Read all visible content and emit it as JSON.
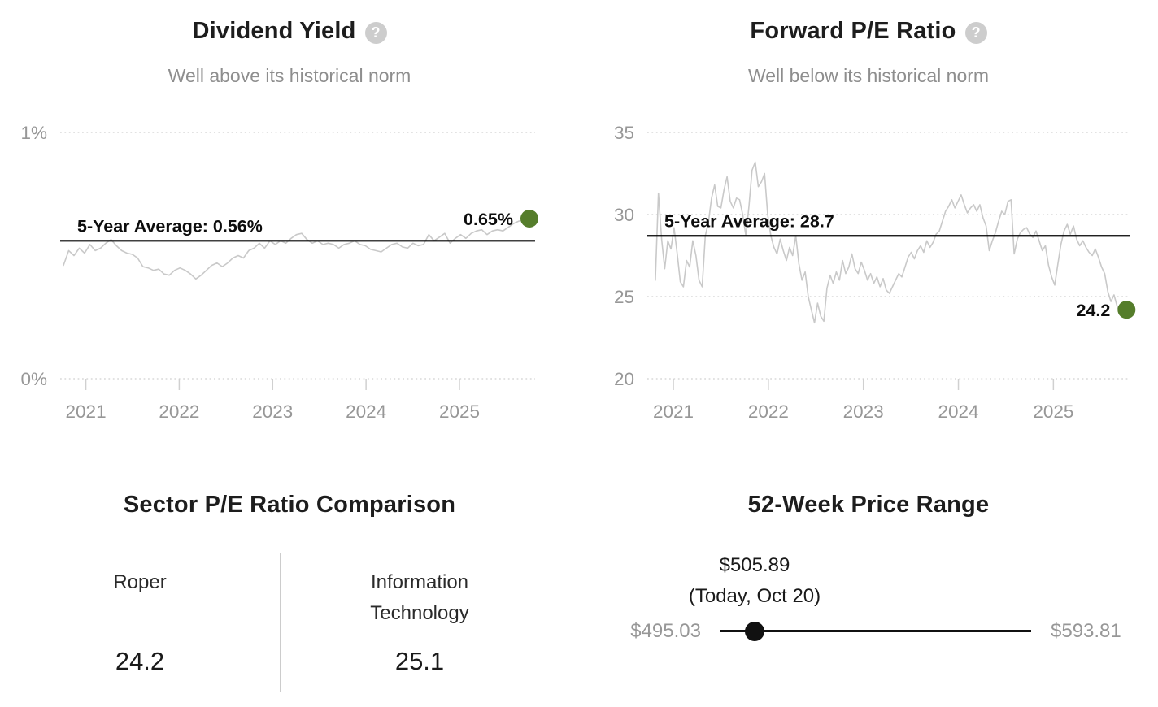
{
  "icons": {
    "help_glyph": "?"
  },
  "colors": {
    "accent_green": "#557d2b",
    "series_gray": "#c9c9c9",
    "grid_gray": "#d9d9d9",
    "text_dark": "#1a1a1a",
    "text_gray": "#979797"
  },
  "chart_data": [
    {
      "type": "line",
      "title": "Dividend Yield",
      "subtitle": "Well above its historical norm",
      "ylim": [
        0,
        1
      ],
      "yticks": [
        1,
        0
      ],
      "ytick_labels": [
        "1%",
        "0%"
      ],
      "xticks": [
        2021,
        2022,
        2023,
        2024,
        2025
      ],
      "xtick_labels": [
        "2021",
        "2022",
        "2023",
        "2024",
        "2025"
      ],
      "x_range_years": [
        2020.76,
        2025.81
      ],
      "grid": "dotted-horizontal",
      "average": {
        "label": "5-Year Average: 0.56%",
        "value": 0.56
      },
      "current": {
        "label": "0.65%",
        "value": 0.65
      },
      "series": [
        {
          "name": "Dividend Yield (5-year history)",
          "xspan": [
            0.0,
            0.988
          ],
          "values": [
            0.46,
            0.52,
            0.5,
            0.53,
            0.51,
            0.545,
            0.52,
            0.53,
            0.55,
            0.565,
            0.54,
            0.52,
            0.51,
            0.505,
            0.49,
            0.455,
            0.45,
            0.44,
            0.445,
            0.425,
            0.42,
            0.44,
            0.45,
            0.44,
            0.425,
            0.405,
            0.42,
            0.44,
            0.46,
            0.47,
            0.455,
            0.47,
            0.49,
            0.5,
            0.49,
            0.52,
            0.53,
            0.55,
            0.53,
            0.56,
            0.545,
            0.56,
            0.55,
            0.57,
            0.585,
            0.59,
            0.565,
            0.55,
            0.56,
            0.545,
            0.55,
            0.545,
            0.53,
            0.545,
            0.55,
            0.56,
            0.545,
            0.54,
            0.525,
            0.52,
            0.515,
            0.53,
            0.545,
            0.55,
            0.535,
            0.53,
            0.55,
            0.54,
            0.545,
            0.585,
            0.56,
            0.575,
            0.59,
            0.55,
            0.57,
            0.585,
            0.57,
            0.59,
            0.6,
            0.605,
            0.585,
            0.6,
            0.605,
            0.6,
            0.615,
            0.63,
            0.64,
            0.645,
            0.65
          ]
        }
      ]
    },
    {
      "type": "line",
      "title": "Forward P/E Ratio",
      "subtitle": "Well below its historical norm",
      "ylim": [
        20,
        35
      ],
      "yticks": [
        35,
        30,
        25,
        20
      ],
      "ytick_labels": [
        "35",
        "30",
        "25",
        "20"
      ],
      "xticks": [
        2021,
        2022,
        2023,
        2024,
        2025
      ],
      "xtick_labels": [
        "2021",
        "2022",
        "2023",
        "2024",
        "2025"
      ],
      "x_range_years": [
        2020.76,
        2025.81
      ],
      "grid": "dotted-horizontal",
      "average": {
        "label": "5-Year Average: 28.7",
        "value": 28.7
      },
      "current": {
        "label": "24.2",
        "value": 24.2
      },
      "series": [
        {
          "name": "Forward P/E (5-year history)",
          "xspan": [
            0.01,
            0.992
          ],
          "values": [
            26.0,
            31.3,
            28.5,
            26.7,
            28.4,
            27.9,
            29.2,
            27.6,
            25.9,
            25.6,
            27.2,
            26.8,
            28.4,
            27.5,
            26.0,
            25.6,
            28.7,
            29.5,
            31.0,
            31.8,
            30.5,
            30.4,
            31.5,
            32.3,
            30.8,
            30.4,
            31.0,
            30.9,
            30.0,
            28.7,
            30.5,
            32.7,
            33.2,
            31.7,
            32.0,
            32.5,
            30.0,
            28.7,
            28.0,
            27.6,
            28.5,
            27.8,
            27.2,
            28.0,
            27.5,
            28.7,
            27.0,
            26.0,
            26.5,
            25.0,
            24.2,
            23.4,
            24.6,
            23.8,
            23.5,
            25.5,
            26.3,
            25.8,
            26.5,
            26.0,
            27.2,
            26.4,
            26.8,
            27.6,
            26.7,
            26.4,
            27.1,
            26.6,
            26.0,
            26.4,
            25.8,
            26.2,
            25.6,
            26.1,
            25.4,
            25.2,
            25.6,
            26.0,
            26.4,
            26.2,
            26.8,
            27.4,
            27.7,
            27.3,
            27.8,
            28.1,
            27.7,
            28.4,
            28.0,
            28.3,
            28.8,
            29.0,
            29.6,
            30.2,
            30.5,
            30.9,
            30.4,
            30.8,
            31.2,
            30.6,
            30.1,
            30.4,
            30.6,
            30.2,
            30.6,
            29.8,
            29.3,
            27.8,
            28.4,
            28.9,
            29.6,
            30.2,
            30.0,
            30.8,
            30.9,
            27.6,
            28.5,
            28.9,
            29.1,
            29.2,
            28.8,
            28.6,
            29.0,
            28.4,
            27.8,
            28.1,
            26.9,
            26.2,
            25.7,
            27.0,
            28.2,
            29.0,
            29.4,
            28.8,
            29.3,
            28.5,
            28.1,
            28.4,
            28.0,
            27.7,
            27.5,
            27.9,
            27.4,
            26.8,
            26.4,
            25.3,
            24.7,
            25.1,
            24.4,
            24.0,
            24.3,
            24.2
          ]
        }
      ]
    }
  ],
  "sector_comparison": {
    "title": "Sector P/E Ratio Comparison",
    "columns": [
      {
        "label": "Roper",
        "value": "24.2"
      },
      {
        "label": "Information Technology",
        "value": "25.1"
      }
    ]
  },
  "price_range": {
    "title": "52-Week Price Range",
    "current_price": "$505.89",
    "current_date_label": "(Today, Oct 20)",
    "low_label": "$495.03",
    "high_label": "$593.81",
    "low_value": 495.03,
    "high_value": 593.81,
    "current_value": 505.89
  }
}
